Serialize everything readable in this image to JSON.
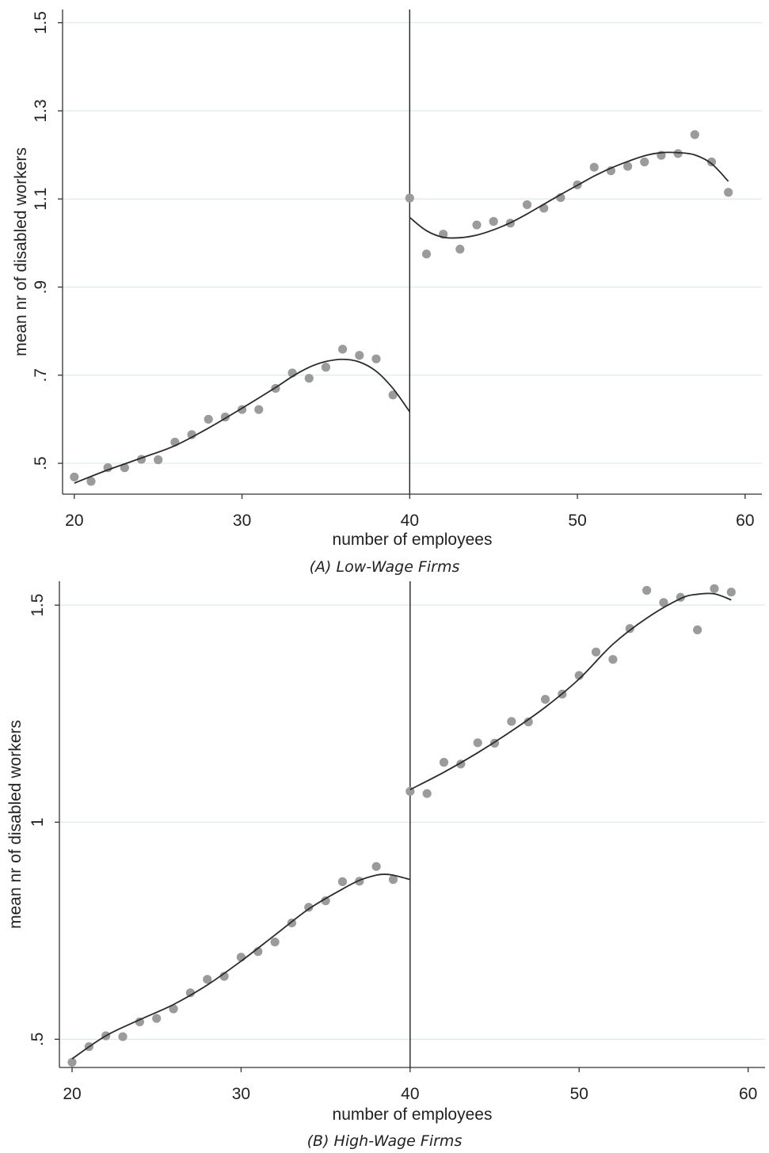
{
  "chart_data": [
    {
      "id": "A",
      "type": "scatter",
      "caption": "(A) Low-Wage Firms",
      "xlabel": "number of employees",
      "ylabel": "mean nr of disabled workers",
      "xlim": [
        19.3,
        61
      ],
      "ylim": [
        0.43,
        1.53
      ],
      "xticks": [
        20,
        30,
        40,
        50,
        60
      ],
      "xtick_labels": [
        "20",
        "30",
        "40",
        "50",
        "60"
      ],
      "yticks": [
        0.5,
        0.7,
        0.9,
        1.1,
        1.3,
        1.5
      ],
      "ytick_labels": [
        ".5",
        ".7",
        ".9",
        "1.1",
        "1.3",
        "1.5"
      ],
      "gridlines": true,
      "cutoff": 40,
      "series": [
        {
          "x": [
            20,
            21,
            22,
            23,
            24,
            25,
            26,
            27,
            28,
            29,
            30,
            31,
            32,
            33,
            34,
            35,
            36,
            37,
            38,
            39,
            40,
            41,
            42,
            43,
            44,
            45,
            46,
            47,
            48,
            49,
            50,
            51,
            52,
            53,
            54,
            55,
            56,
            57,
            58,
            59
          ],
          "values": [
            0.469,
            0.459,
            0.49,
            0.49,
            0.509,
            0.508,
            0.548,
            0.565,
            0.6,
            0.605,
            0.622,
            0.622,
            0.67,
            0.705,
            0.693,
            0.718,
            0.759,
            0.745,
            0.737,
            0.655,
            1.102,
            0.975,
            1.02,
            0.986,
            1.041,
            1.049,
            1.045,
            1.087,
            1.079,
            1.103,
            1.132,
            1.172,
            1.164,
            1.174,
            1.184,
            1.199,
            1.203,
            1.246,
            1.184,
            1.115
          ]
        }
      ],
      "fit_lines": [
        {
          "x": [
            20,
            22,
            24,
            26,
            28,
            30,
            32,
            33,
            34,
            35,
            36,
            37,
            38,
            39,
            40
          ],
          "values": [
            0.455,
            0.485,
            0.512,
            0.54,
            0.58,
            0.625,
            0.672,
            0.697,
            0.718,
            0.731,
            0.736,
            0.73,
            0.709,
            0.67,
            0.617
          ]
        },
        {
          "x": [
            40,
            41,
            42,
            43,
            44,
            45,
            46,
            47,
            48,
            49,
            50,
            51,
            52,
            53,
            54,
            55,
            56,
            57,
            58,
            59
          ],
          "values": [
            1.058,
            1.028,
            1.013,
            1.012,
            1.018,
            1.03,
            1.046,
            1.066,
            1.088,
            1.11,
            1.131,
            1.152,
            1.17,
            1.185,
            1.198,
            1.205,
            1.205,
            1.2,
            1.18,
            1.14
          ]
        }
      ]
    },
    {
      "id": "B",
      "type": "scatter",
      "caption": "(B) High-Wage Firms",
      "xlabel": "number of employees",
      "ylabel": "mean nr of disabled workers",
      "xlim": [
        19.25,
        61
      ],
      "ylim": [
        0.435,
        1.555
      ],
      "xticks": [
        20,
        30,
        40,
        50,
        60
      ],
      "xtick_labels": [
        "20",
        "30",
        "40",
        "50",
        "60"
      ],
      "yticks": [
        0.5,
        1,
        1.5
      ],
      "ytick_labels": [
        ".5",
        "1",
        "1.5"
      ],
      "gridlines": true,
      "cutoff": 40,
      "series": [
        {
          "x": [
            20,
            21,
            22,
            23,
            24,
            25,
            26,
            27,
            28,
            29,
            30,
            31,
            32,
            33,
            34,
            35,
            36,
            37,
            38,
            39,
            40,
            41,
            42,
            43,
            44,
            45,
            46,
            47,
            48,
            49,
            50,
            51,
            52,
            53,
            54,
            55,
            56,
            57,
            58,
            59
          ],
          "values": [
            0.447,
            0.483,
            0.508,
            0.506,
            0.54,
            0.548,
            0.57,
            0.607,
            0.638,
            0.645,
            0.689,
            0.702,
            0.724,
            0.768,
            0.804,
            0.819,
            0.863,
            0.864,
            0.898,
            0.868,
            1.071,
            1.066,
            1.138,
            1.134,
            1.183,
            1.182,
            1.232,
            1.231,
            1.283,
            1.295,
            1.338,
            1.392,
            1.375,
            1.446,
            1.534,
            1.506,
            1.518,
            1.443,
            1.538,
            1.53
          ]
        }
      ],
      "fit_lines": [
        {
          "x": [
            20,
            22,
            24,
            26,
            28,
            30,
            32,
            34,
            36,
            37,
            38,
            38.5,
            39,
            40
          ],
          "values": [
            0.455,
            0.508,
            0.545,
            0.58,
            0.625,
            0.68,
            0.74,
            0.8,
            0.846,
            0.866,
            0.878,
            0.88,
            0.878,
            0.868
          ]
        },
        {
          "x": [
            40,
            42,
            44,
            46,
            48,
            50,
            52,
            54,
            56,
            57,
            58,
            59
          ],
          "values": [
            1.075,
            1.115,
            1.16,
            1.21,
            1.265,
            1.33,
            1.41,
            1.47,
            1.515,
            1.525,
            1.526,
            1.512
          ]
        }
      ]
    }
  ],
  "colors": {
    "points": "#9b9b9b",
    "fit_line": "#2b2b2b",
    "grid": "#dde9e9",
    "axis": "#333333",
    "cutoff_line": "#222222"
  }
}
